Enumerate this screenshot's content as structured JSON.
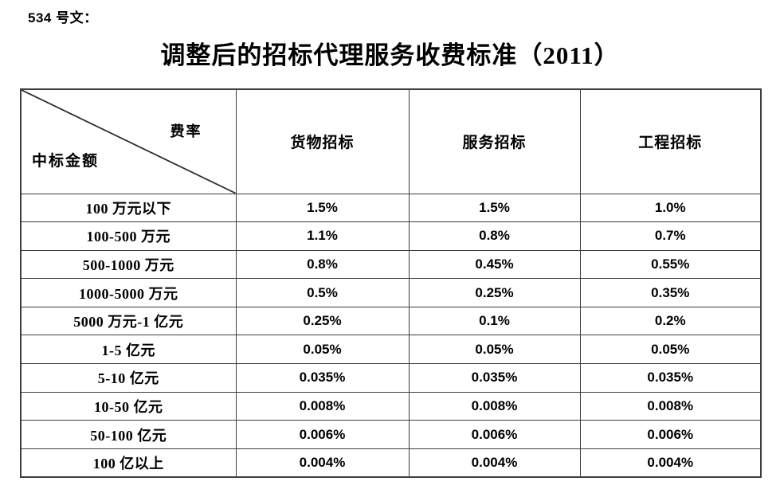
{
  "doc_label": "534 号文：",
  "title": "调整后的招标代理服务收费标准（2011）",
  "table": {
    "corner": {
      "top_right": "费率",
      "bottom_left": "中标金额"
    },
    "columns": [
      "货物招标",
      "服务招标",
      "工程招标"
    ],
    "rows": [
      {
        "amount": "100 万元以下",
        "goods": "1.5%",
        "service": "1.5%",
        "engineering": "1.0%"
      },
      {
        "amount": "100-500 万元",
        "goods": "1.1%",
        "service": "0.8%",
        "engineering": "0.7%"
      },
      {
        "amount": "500-1000 万元",
        "goods": "0.8%",
        "service": "0.45%",
        "engineering": "0.55%"
      },
      {
        "amount": "1000-5000 万元",
        "goods": "0.5%",
        "service": "0.25%",
        "engineering": "0.35%"
      },
      {
        "amount": "5000 万元-1 亿元",
        "goods": "0.25%",
        "service": "0.1%",
        "engineering": "0.2%"
      },
      {
        "amount": "1-5 亿元",
        "goods": "0.05%",
        "service": "0.05%",
        "engineering": "0.05%"
      },
      {
        "amount": "5-10 亿元",
        "goods": "0.035%",
        "service": "0.035%",
        "engineering": "0.035%"
      },
      {
        "amount": "10-50 亿元",
        "goods": "0.008%",
        "service": "0.008%",
        "engineering": "0.008%"
      },
      {
        "amount": "50-100 亿元",
        "goods": "0.006%",
        "service": "0.006%",
        "engineering": "0.006%"
      },
      {
        "amount": "100 亿以上",
        "goods": "0.004%",
        "service": "0.004%",
        "engineering": "0.004%"
      }
    ]
  },
  "colors": {
    "border": "#3d3d3d",
    "text": "#000000",
    "background": "#ffffff"
  }
}
